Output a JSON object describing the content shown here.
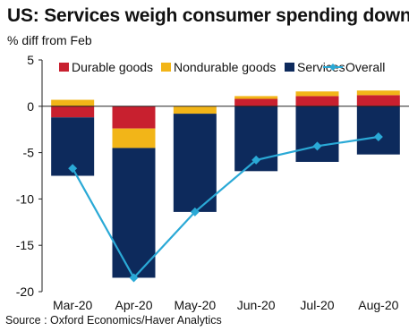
{
  "title": "US: Services weigh consumer spending down",
  "ylabel": "% diff from Feb",
  "source": "Source : Oxford Economics/Haver Analytics",
  "chart_data": {
    "type": "bar",
    "stacked": true,
    "categories": [
      "Mar-20",
      "Apr-20",
      "May-20",
      "Jun-20",
      "Jul-20",
      "Aug-20"
    ],
    "series": [
      {
        "name": "Durable goods",
        "kind": "bar",
        "color": "#c8202f",
        "values": [
          -1.2,
          -2.4,
          0.0,
          0.8,
          1.1,
          1.2
        ]
      },
      {
        "name": "Nondurable goods",
        "kind": "bar",
        "color": "#f2b518",
        "values": [
          0.7,
          -2.1,
          -0.8,
          0.3,
          0.5,
          0.5
        ]
      },
      {
        "name": "Services",
        "kind": "bar",
        "color": "#0d2a5c",
        "values": [
          -6.3,
          -14.0,
          -10.6,
          -7.0,
          -6.0,
          -5.2
        ]
      },
      {
        "name": "Overall",
        "kind": "line",
        "color": "#2aa9d6",
        "values": [
          -6.7,
          -18.5,
          -11.4,
          -5.8,
          -4.3,
          -3.3
        ]
      }
    ],
    "ylim": [
      -20,
      5
    ],
    "yticks": [
      5,
      0,
      -5,
      -10,
      -15,
      -20
    ],
    "legend_position": "top",
    "grid": false
  }
}
